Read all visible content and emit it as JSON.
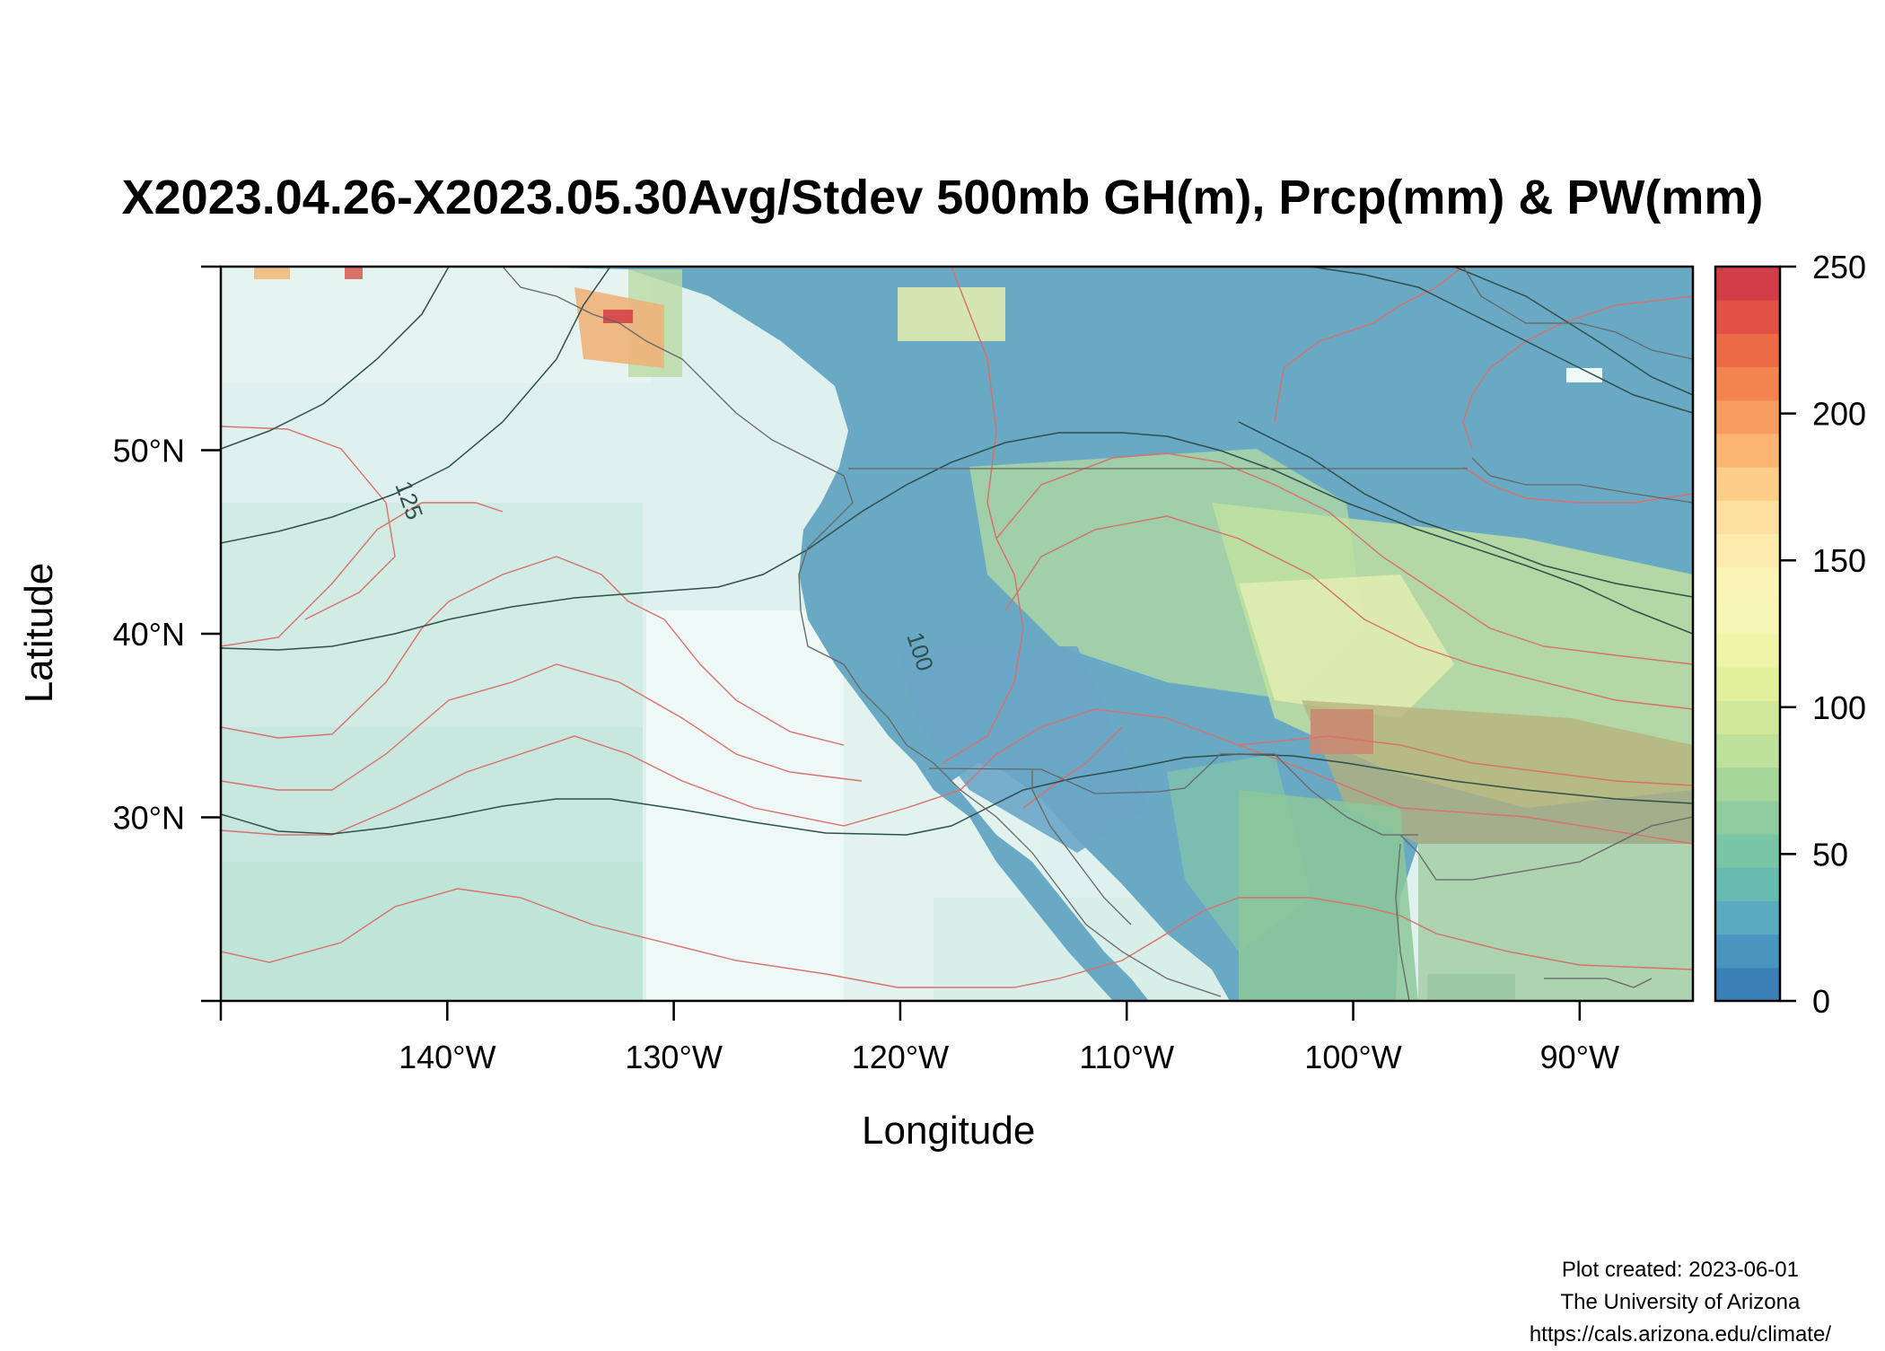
{
  "title": "X2023.04.26-X2023.05.30Avg/Stdev 500mb GH(m), Prcp(mm) & PW(mm)",
  "x_axis": {
    "title": "Longitude",
    "ticks": [
      "140°W",
      "130°W",
      "120°W",
      "110°W",
      "100°W",
      "90°W"
    ],
    "tick_values": [
      -140,
      -130,
      -120,
      -110,
      -100,
      -90
    ],
    "range": [
      -150,
      -85
    ]
  },
  "y_axis": {
    "title": "Latitude",
    "ticks": [
      "30°N",
      "40°N",
      "50°N"
    ],
    "tick_values": [
      30,
      40,
      50
    ],
    "range": [
      20,
      60
    ]
  },
  "colorbar": {
    "ticks": [
      "0",
      "50",
      "100",
      "150",
      "200",
      "250"
    ],
    "tick_values": [
      0,
      50,
      100,
      150,
      200,
      250
    ],
    "range": [
      0,
      250
    ],
    "colors": [
      "#3a7fb6",
      "#4a95bd",
      "#5aaac0",
      "#68bbb0",
      "#79c5a6",
      "#8fcd9e",
      "#a6d69a",
      "#bde09a",
      "#d1e89a",
      "#e3f09b",
      "#eef5a8",
      "#f6f7b4",
      "#fbf5b5",
      "#fcebad",
      "#fde0a0",
      "#fccd86",
      "#fbb570",
      "#f89c5f",
      "#f3834f",
      "#ec6a45",
      "#e05245",
      "#d23e48"
    ]
  },
  "contour_labels": [
    "125",
    "100"
  ],
  "colors": {
    "gh_contour": "#2f4f4a",
    "pw_contour": "#d9706a",
    "coastline": "#666666",
    "ocean_fill": "#dff1ee"
  },
  "footer": {
    "line1": "Plot created: 2023-06-01",
    "line2": "The University of Arizona",
    "line3": "https://cals.arizona.edu/climate/"
  }
}
